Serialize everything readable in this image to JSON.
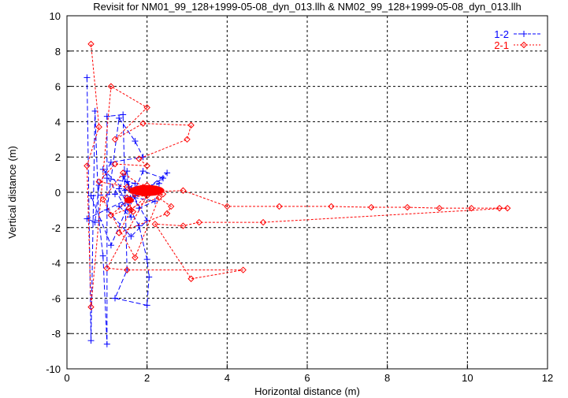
{
  "chart_data": {
    "type": "scatter",
    "title": "Revisit for NM01_99_128+1999-05-08_dyn_013.llh & NM02_99_128+1999-05-08_dyn_013.llh",
    "xlabel": "Horizontal distance (m)",
    "ylabel": "Vertical distance (m)",
    "xlim": [
      0,
      12
    ],
    "ylim": [
      -10,
      10
    ],
    "xticks": [
      0,
      2,
      4,
      6,
      8,
      10,
      12
    ],
    "yticks": [
      -10,
      -8,
      -6,
      -4,
      -2,
      0,
      2,
      4,
      6,
      8,
      10
    ],
    "grid": true,
    "legend_position": "top-right",
    "series": [
      {
        "name": "1-2",
        "color": "#0000ff",
        "marker": "plus",
        "points": [
          [
            0.5,
            6.5
          ],
          [
            0.6,
            -8.4
          ],
          [
            0.7,
            4.6
          ],
          [
            0.8,
            -1.6
          ],
          [
            0.9,
            -3.6
          ],
          [
            1.0,
            -8.6
          ],
          [
            1.0,
            4.3
          ],
          [
            1.4,
            4.4
          ],
          [
            1.5,
            -4.4
          ],
          [
            1.2,
            -6.0
          ],
          [
            2.0,
            -6.4
          ],
          [
            2.05,
            -4.8
          ],
          [
            2.0,
            -3.8
          ],
          [
            1.8,
            -1.9
          ],
          [
            1.3,
            0.2
          ],
          [
            1.5,
            1.2
          ],
          [
            1.6,
            -0.5
          ],
          [
            2.5,
            1.1
          ],
          [
            2.3,
            0.5
          ],
          [
            1.7,
            -0.2
          ],
          [
            0.5,
            -1.5
          ],
          [
            0.7,
            -1.7
          ],
          [
            0.8,
            0.4
          ],
          [
            1.1,
            1.7
          ],
          [
            1.9,
            2.0
          ],
          [
            1.7,
            2.9
          ],
          [
            1.3,
            4.2
          ],
          [
            1.0,
            -1.0
          ],
          [
            1.6,
            -2.5
          ],
          [
            2.0,
            -1.6
          ],
          [
            1.4,
            0.9
          ],
          [
            1.5,
            0.6
          ],
          [
            1.55,
            0.3
          ],
          [
            1.8,
            -0.9
          ],
          [
            2.2,
            -0.5
          ],
          [
            1.2,
            -0.1
          ],
          [
            0.6,
            -0.2
          ],
          [
            1.1,
            -3.0
          ],
          [
            1.9,
            1.2
          ],
          [
            2.4,
            0.8
          ],
          [
            1.3,
            -0.8
          ],
          [
            1.6,
            -1.4
          ],
          [
            0.9,
            1.3
          ],
          [
            1.45,
            0.1
          ],
          [
            1.7,
            0.5
          ],
          [
            1.0,
            0.8
          ]
        ]
      },
      {
        "name": "2-1",
        "color": "#ff0000",
        "marker": "diamond",
        "points": [
          [
            0.6,
            8.4
          ],
          [
            0.8,
            3.7
          ],
          [
            0.5,
            1.5
          ],
          [
            0.6,
            -6.5
          ],
          [
            1.1,
            6.0
          ],
          [
            2.0,
            4.8
          ],
          [
            1.2,
            3.0
          ],
          [
            1.9,
            3.9
          ],
          [
            3.1,
            3.8
          ],
          [
            3.0,
            3.0
          ],
          [
            1.8,
            1.9
          ],
          [
            2.0,
            1.5
          ],
          [
            1.2,
            1.6
          ],
          [
            0.8,
            0.6
          ],
          [
            1.5,
            0.3
          ],
          [
            1.8,
            0.0
          ],
          [
            2.9,
            0.1
          ],
          [
            4.0,
            -0.8
          ],
          [
            5.3,
            -0.8
          ],
          [
            6.6,
            -0.8
          ],
          [
            7.6,
            -0.85
          ],
          [
            8.5,
            -0.85
          ],
          [
            9.3,
            -0.9
          ],
          [
            10.1,
            -0.9
          ],
          [
            10.8,
            -0.9
          ],
          [
            11.0,
            -0.9
          ],
          [
            4.9,
            -1.7
          ],
          [
            3.3,
            -1.7
          ],
          [
            2.9,
            -1.9
          ],
          [
            2.2,
            -1.8
          ],
          [
            3.1,
            -4.9
          ],
          [
            4.4,
            -4.4
          ],
          [
            1.5,
            -4.4
          ],
          [
            1.0,
            -4.3
          ],
          [
            2.0,
            -0.2
          ],
          [
            1.6,
            -1.0
          ],
          [
            1.3,
            -2.3
          ],
          [
            2.5,
            -1.2
          ],
          [
            2.6,
            -0.8
          ],
          [
            1.4,
            1.1
          ],
          [
            0.9,
            -0.4
          ],
          [
            1.7,
            -3.7
          ],
          [
            2.3,
            -0.3
          ],
          [
            1.1,
            -1.3
          ],
          [
            1.9,
            0.3
          ],
          [
            2.1,
            0.1
          ],
          [
            1.7,
            -0.1
          ],
          [
            2.2,
            0.2
          ],
          [
            1.6,
            0.1
          ],
          [
            2.0,
            0.4
          ],
          [
            1.8,
            0.2
          ],
          [
            2.4,
            -0.1
          ],
          [
            1.5,
            -0.3
          ],
          [
            1.65,
            -1.1
          ],
          [
            1.55,
            -0.9
          ]
        ]
      }
    ]
  }
}
